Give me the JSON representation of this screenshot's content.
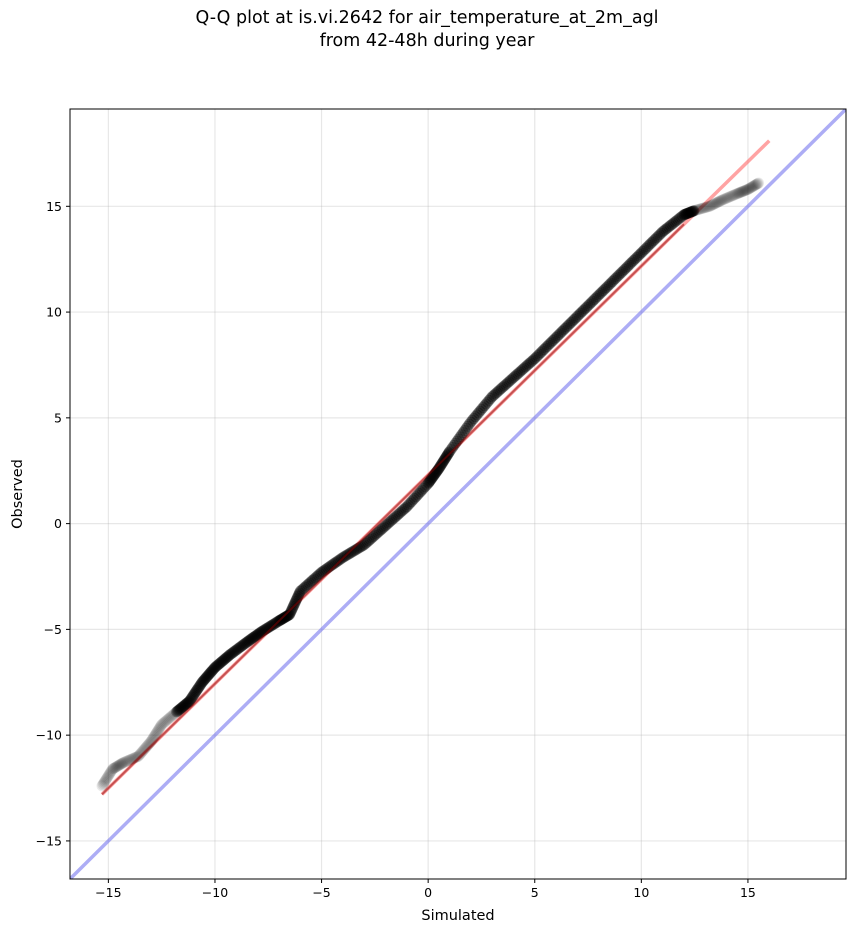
{
  "chart_data": {
    "type": "scatter",
    "title": "Q-Q plot at is.vi.2642 for air_temperature_at_2m_agl",
    "subtitle": "from 42-48h during year",
    "xlabel": "Simulated",
    "ylabel": "Observed",
    "xlim": [
      -16.8,
      19.6
    ],
    "ylim": [
      -16.8,
      19.6
    ],
    "xticks": [
      -15,
      -10,
      -5,
      0,
      5,
      10,
      15
    ],
    "yticks": [
      -15,
      -10,
      -5,
      0,
      5,
      10,
      15
    ],
    "grid": true,
    "quantile_points": {
      "x": [
        -15.3,
        -14.8,
        -14.3,
        -13.6,
        -13.0,
        -12.5,
        -11.8,
        -11.2,
        -10.6,
        -10.0,
        -9.3,
        -8.5,
        -7.8,
        -7.0,
        -6.5,
        -6.0,
        -5.0,
        -4.0,
        -3.0,
        -2.0,
        -1.0,
        0.0,
        0.5,
        1.0,
        2.0,
        3.0,
        4.0,
        5.0,
        6.0,
        7.0,
        8.0,
        9.0,
        10.0,
        11.0,
        12.0,
        12.5,
        13.2,
        13.8,
        14.5,
        15.0,
        15.5
      ],
      "y": [
        -12.4,
        -11.6,
        -11.3,
        -11.0,
        -10.3,
        -9.5,
        -8.9,
        -8.4,
        -7.5,
        -6.8,
        -6.2,
        -5.6,
        -5.1,
        -4.6,
        -4.3,
        -3.2,
        -2.3,
        -1.6,
        -1.0,
        -0.1,
        0.8,
        1.9,
        2.6,
        3.4,
        4.8,
        6.0,
        6.9,
        7.8,
        8.8,
        9.8,
        10.8,
        11.8,
        12.8,
        13.8,
        14.6,
        14.8,
        15.0,
        15.3,
        15.6,
        15.8,
        16.1
      ],
      "color": "#000000"
    },
    "fit_line": {
      "x": [
        -15.3,
        16.0
      ],
      "y": [
        -12.8,
        18.1
      ],
      "color": "#ff6666"
    },
    "identity_line": {
      "x": [
        -16.8,
        19.6
      ],
      "y": [
        -16.8,
        19.6
      ],
      "color": "#7777ee"
    }
  }
}
